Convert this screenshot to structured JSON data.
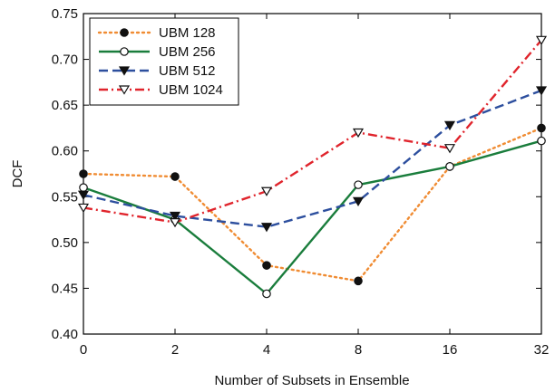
{
  "chart_data": {
    "type": "line",
    "title": "",
    "xlabel": "Number of Subsets in Ensemble",
    "ylabel": "DCF",
    "categories": [
      "0",
      "2",
      "4",
      "8",
      "16",
      "32"
    ],
    "ylim": [
      0.4,
      0.75
    ],
    "yticks": [
      "0.40",
      "0.45",
      "0.50",
      "0.55",
      "0.60",
      "0.65",
      "0.70",
      "0.75"
    ],
    "grid": false,
    "legend_position": "top-left",
    "series": [
      {
        "name": "UBM 128",
        "values": [
          0.575,
          0.572,
          0.475,
          0.458,
          0.583,
          0.625
        ],
        "color": "#f08c33",
        "dash": "dotted",
        "marker": "filled-circle"
      },
      {
        "name": "UBM 256",
        "values": [
          0.56,
          0.525,
          0.444,
          0.563,
          0.583,
          0.611
        ],
        "color": "#1a7d3c",
        "dash": "solid",
        "marker": "open-circle"
      },
      {
        "name": "UBM 512",
        "values": [
          0.552,
          0.529,
          0.517,
          0.545,
          0.628,
          0.666
        ],
        "color": "#2d4f9e",
        "dash": "dashed",
        "marker": "filled-triangle-down"
      },
      {
        "name": "UBM 1024",
        "values": [
          0.538,
          0.522,
          0.556,
          0.62,
          0.603,
          0.721
        ],
        "color": "#e0242c",
        "dash": "dash-dot",
        "marker": "open-triangle-down"
      }
    ]
  }
}
